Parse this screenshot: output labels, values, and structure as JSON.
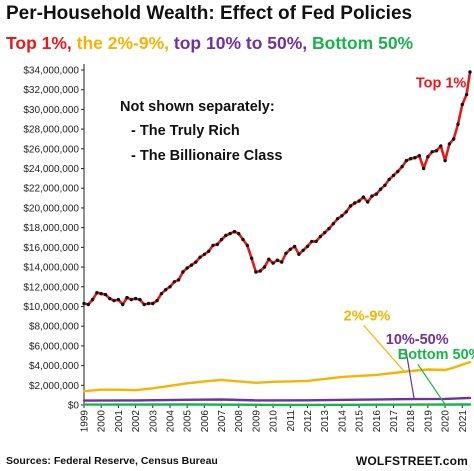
{
  "title": "Per-Household  Wealth:  Effect of Fed Policies",
  "subtitle": [
    {
      "text": "Top 1%, ",
      "color": "#e8191c"
    },
    {
      "text": "the 2%-9%, ",
      "color": "#f4b400"
    },
    {
      "text": "top 10% to 50%, ",
      "color": "#7030a0"
    },
    {
      "text": "Bottom 50%",
      "color": "#19b34a"
    }
  ],
  "note": {
    "heading": "Not shown separately:",
    "items": [
      "- The Truly Rich",
      "- The Billionaire Class"
    ]
  },
  "source": "Sources: Federal Reserve, Census Bureau",
  "brand": "WOLFSTREET.com",
  "chart_data": {
    "type": "line",
    "title": "",
    "xlabel": "",
    "ylabel": "",
    "xlim": [
      1999.0,
      2021.45
    ],
    "ylim": [
      0,
      34000000
    ],
    "grid": false,
    "x_ticks": [
      "1999",
      "2000",
      "2001",
      "2002",
      "2003",
      "2004",
      "2005",
      "2006",
      "2007",
      "2008",
      "2009",
      "2010",
      "2011",
      "2012",
      "2013",
      "2014",
      "2015",
      "2016",
      "2017",
      "2018",
      "2019",
      "2020",
      "2021"
    ],
    "y_ticks": [
      {
        "value": 0,
        "label": "$0"
      },
      {
        "value": 2000000,
        "label": "$2,000,000"
      },
      {
        "value": 4000000,
        "label": "$4,000,000"
      },
      {
        "value": 6000000,
        "label": "$6,000,000"
      },
      {
        "value": 8000000,
        "label": "$8,000,000"
      },
      {
        "value": 10000000,
        "label": "$10,000,000"
      },
      {
        "value": 12000000,
        "label": "$12,000,000"
      },
      {
        "value": 14000000,
        "label": "$14,000,000"
      },
      {
        "value": 16000000,
        "label": "$16,000,000"
      },
      {
        "value": 18000000,
        "label": "$18,000,000"
      },
      {
        "value": 20000000,
        "label": "$20,000,000"
      },
      {
        "value": 22000000,
        "label": "$22,000,000"
      },
      {
        "value": 24000000,
        "label": "$24,000,000"
      },
      {
        "value": 26000000,
        "label": "$26,000,000"
      },
      {
        "value": 28000000,
        "label": "$28,000,000"
      },
      {
        "value": 30000000,
        "label": "$30,000,000"
      },
      {
        "value": 32000000,
        "label": "$32,000,000"
      },
      {
        "value": 34000000,
        "label": "$34,000,000"
      }
    ],
    "series": [
      {
        "name": "Top 1%",
        "color": "#e8191c",
        "marker_color": "#111111",
        "markers": true,
        "points": [
          [
            1999.0,
            10300000
          ],
          [
            1999.25,
            10200000
          ],
          [
            1999.5,
            10700000
          ],
          [
            1999.75,
            11400000
          ],
          [
            2000.0,
            11300000
          ],
          [
            2000.25,
            11200000
          ],
          [
            2000.5,
            10800000
          ],
          [
            2000.75,
            10600000
          ],
          [
            2001.0,
            10700000
          ],
          [
            2001.25,
            10200000
          ],
          [
            2001.5,
            10900000
          ],
          [
            2001.75,
            10700000
          ],
          [
            2002.0,
            10800000
          ],
          [
            2002.25,
            10700000
          ],
          [
            2002.5,
            10200000
          ],
          [
            2002.75,
            10300000
          ],
          [
            2003.0,
            10300000
          ],
          [
            2003.25,
            10600000
          ],
          [
            2003.5,
            11300000
          ],
          [
            2003.75,
            11700000
          ],
          [
            2004.0,
            12000000
          ],
          [
            2004.25,
            12500000
          ],
          [
            2004.5,
            12700000
          ],
          [
            2004.75,
            13500000
          ],
          [
            2005.0,
            13900000
          ],
          [
            2005.25,
            14200000
          ],
          [
            2005.5,
            14500000
          ],
          [
            2005.75,
            15000000
          ],
          [
            2006.0,
            15300000
          ],
          [
            2006.25,
            15600000
          ],
          [
            2006.5,
            16200000
          ],
          [
            2006.75,
            16300000
          ],
          [
            2007.0,
            16800000
          ],
          [
            2007.25,
            17200000
          ],
          [
            2007.5,
            17400000
          ],
          [
            2007.75,
            17600000
          ],
          [
            2008.0,
            17400000
          ],
          [
            2008.25,
            16800000
          ],
          [
            2008.5,
            16200000
          ],
          [
            2008.75,
            14900000
          ],
          [
            2009.0,
            13500000
          ],
          [
            2009.25,
            13600000
          ],
          [
            2009.5,
            14000000
          ],
          [
            2009.75,
            14800000
          ],
          [
            2010.0,
            14400000
          ],
          [
            2010.25,
            14700000
          ],
          [
            2010.5,
            14500000
          ],
          [
            2010.75,
            15400000
          ],
          [
            2011.0,
            15800000
          ],
          [
            2011.25,
            16100000
          ],
          [
            2011.5,
            15300000
          ],
          [
            2011.75,
            15700000
          ],
          [
            2012.0,
            16100000
          ],
          [
            2012.25,
            16600000
          ],
          [
            2012.5,
            16600000
          ],
          [
            2012.75,
            17100000
          ],
          [
            2013.0,
            17500000
          ],
          [
            2013.25,
            17900000
          ],
          [
            2013.5,
            18400000
          ],
          [
            2013.75,
            18900000
          ],
          [
            2014.0,
            19200000
          ],
          [
            2014.25,
            19600000
          ],
          [
            2014.5,
            20200000
          ],
          [
            2014.75,
            20500000
          ],
          [
            2015.0,
            20700000
          ],
          [
            2015.25,
            21100000
          ],
          [
            2015.5,
            20600000
          ],
          [
            2015.75,
            21200000
          ],
          [
            2016.0,
            21400000
          ],
          [
            2016.25,
            21900000
          ],
          [
            2016.5,
            22300000
          ],
          [
            2016.75,
            22900000
          ],
          [
            2017.0,
            23300000
          ],
          [
            2017.25,
            23700000
          ],
          [
            2017.5,
            24200000
          ],
          [
            2017.75,
            24800000
          ],
          [
            2018.0,
            25000000
          ],
          [
            2018.25,
            25100000
          ],
          [
            2018.5,
            25300000
          ],
          [
            2018.75,
            24000000
          ],
          [
            2019.0,
            25200000
          ],
          [
            2019.25,
            25700000
          ],
          [
            2019.5,
            25800000
          ],
          [
            2019.75,
            26300000
          ],
          [
            2020.0,
            24800000
          ],
          [
            2020.25,
            26500000
          ],
          [
            2020.5,
            27000000
          ],
          [
            2020.75,
            28500000
          ],
          [
            2021.0,
            30500000
          ],
          [
            2021.25,
            31500000
          ],
          [
            2021.45,
            33800000
          ]
        ]
      },
      {
        "name": "2%-9%",
        "color": "#f4b400",
        "markers": false,
        "points": [
          [
            1999.0,
            1400000
          ],
          [
            2000.0,
            1550000
          ],
          [
            2001.0,
            1550000
          ],
          [
            2002.0,
            1500000
          ],
          [
            2003.0,
            1700000
          ],
          [
            2004.0,
            1950000
          ],
          [
            2005.0,
            2200000
          ],
          [
            2006.0,
            2400000
          ],
          [
            2007.0,
            2550000
          ],
          [
            2008.0,
            2400000
          ],
          [
            2009.0,
            2250000
          ],
          [
            2010.0,
            2350000
          ],
          [
            2011.0,
            2400000
          ],
          [
            2012.0,
            2450000
          ],
          [
            2013.0,
            2650000
          ],
          [
            2014.0,
            2850000
          ],
          [
            2015.0,
            2950000
          ],
          [
            2016.0,
            3050000
          ],
          [
            2017.0,
            3250000
          ],
          [
            2018.0,
            3450000
          ],
          [
            2019.0,
            3600000
          ],
          [
            2020.0,
            3550000
          ],
          [
            2020.5,
            3800000
          ],
          [
            2021.0,
            4100000
          ],
          [
            2021.45,
            4350000
          ]
        ]
      },
      {
        "name": "10%-50%",
        "color": "#7030a0",
        "markers": false,
        "points": [
          [
            1999.0,
            450000
          ],
          [
            2002.0,
            470000
          ],
          [
            2005.0,
            530000
          ],
          [
            2007.0,
            560000
          ],
          [
            2009.0,
            470000
          ],
          [
            2012.0,
            480000
          ],
          [
            2015.0,
            540000
          ],
          [
            2018.0,
            600000
          ],
          [
            2020.0,
            620000
          ],
          [
            2021.45,
            720000
          ]
        ]
      },
      {
        "name": "Bottom 50%",
        "color": "#19b34a",
        "markers": false,
        "points": [
          [
            1999.0,
            40000
          ],
          [
            2005.0,
            50000
          ],
          [
            2008.0,
            30000
          ],
          [
            2010.0,
            10000
          ],
          [
            2013.0,
            15000
          ],
          [
            2016.0,
            30000
          ],
          [
            2019.0,
            45000
          ],
          [
            2021.45,
            55000
          ]
        ]
      }
    ],
    "annotations": [
      {
        "text": "Top 1%",
        "color": "#e8191c",
        "at": [
          2018.3,
          32200000
        ],
        "arrow_to": null
      },
      {
        "text": "2%-9%",
        "color": "#f4b400",
        "at": [
          2014.1,
          8600000
        ],
        "arrow_to": [
          2017.6,
          3450000
        ]
      },
      {
        "text": "10%-50%",
        "color": "#7030a0",
        "at": [
          2016.55,
          6200000
        ],
        "arrow_to": [
          2018.2,
          620000
        ]
      },
      {
        "text": "Bottom 50%",
        "color": "#19b34a",
        "at": [
          2017.25,
          4650000
        ],
        "arrow_to": [
          2020.0,
          60000
        ]
      }
    ]
  }
}
